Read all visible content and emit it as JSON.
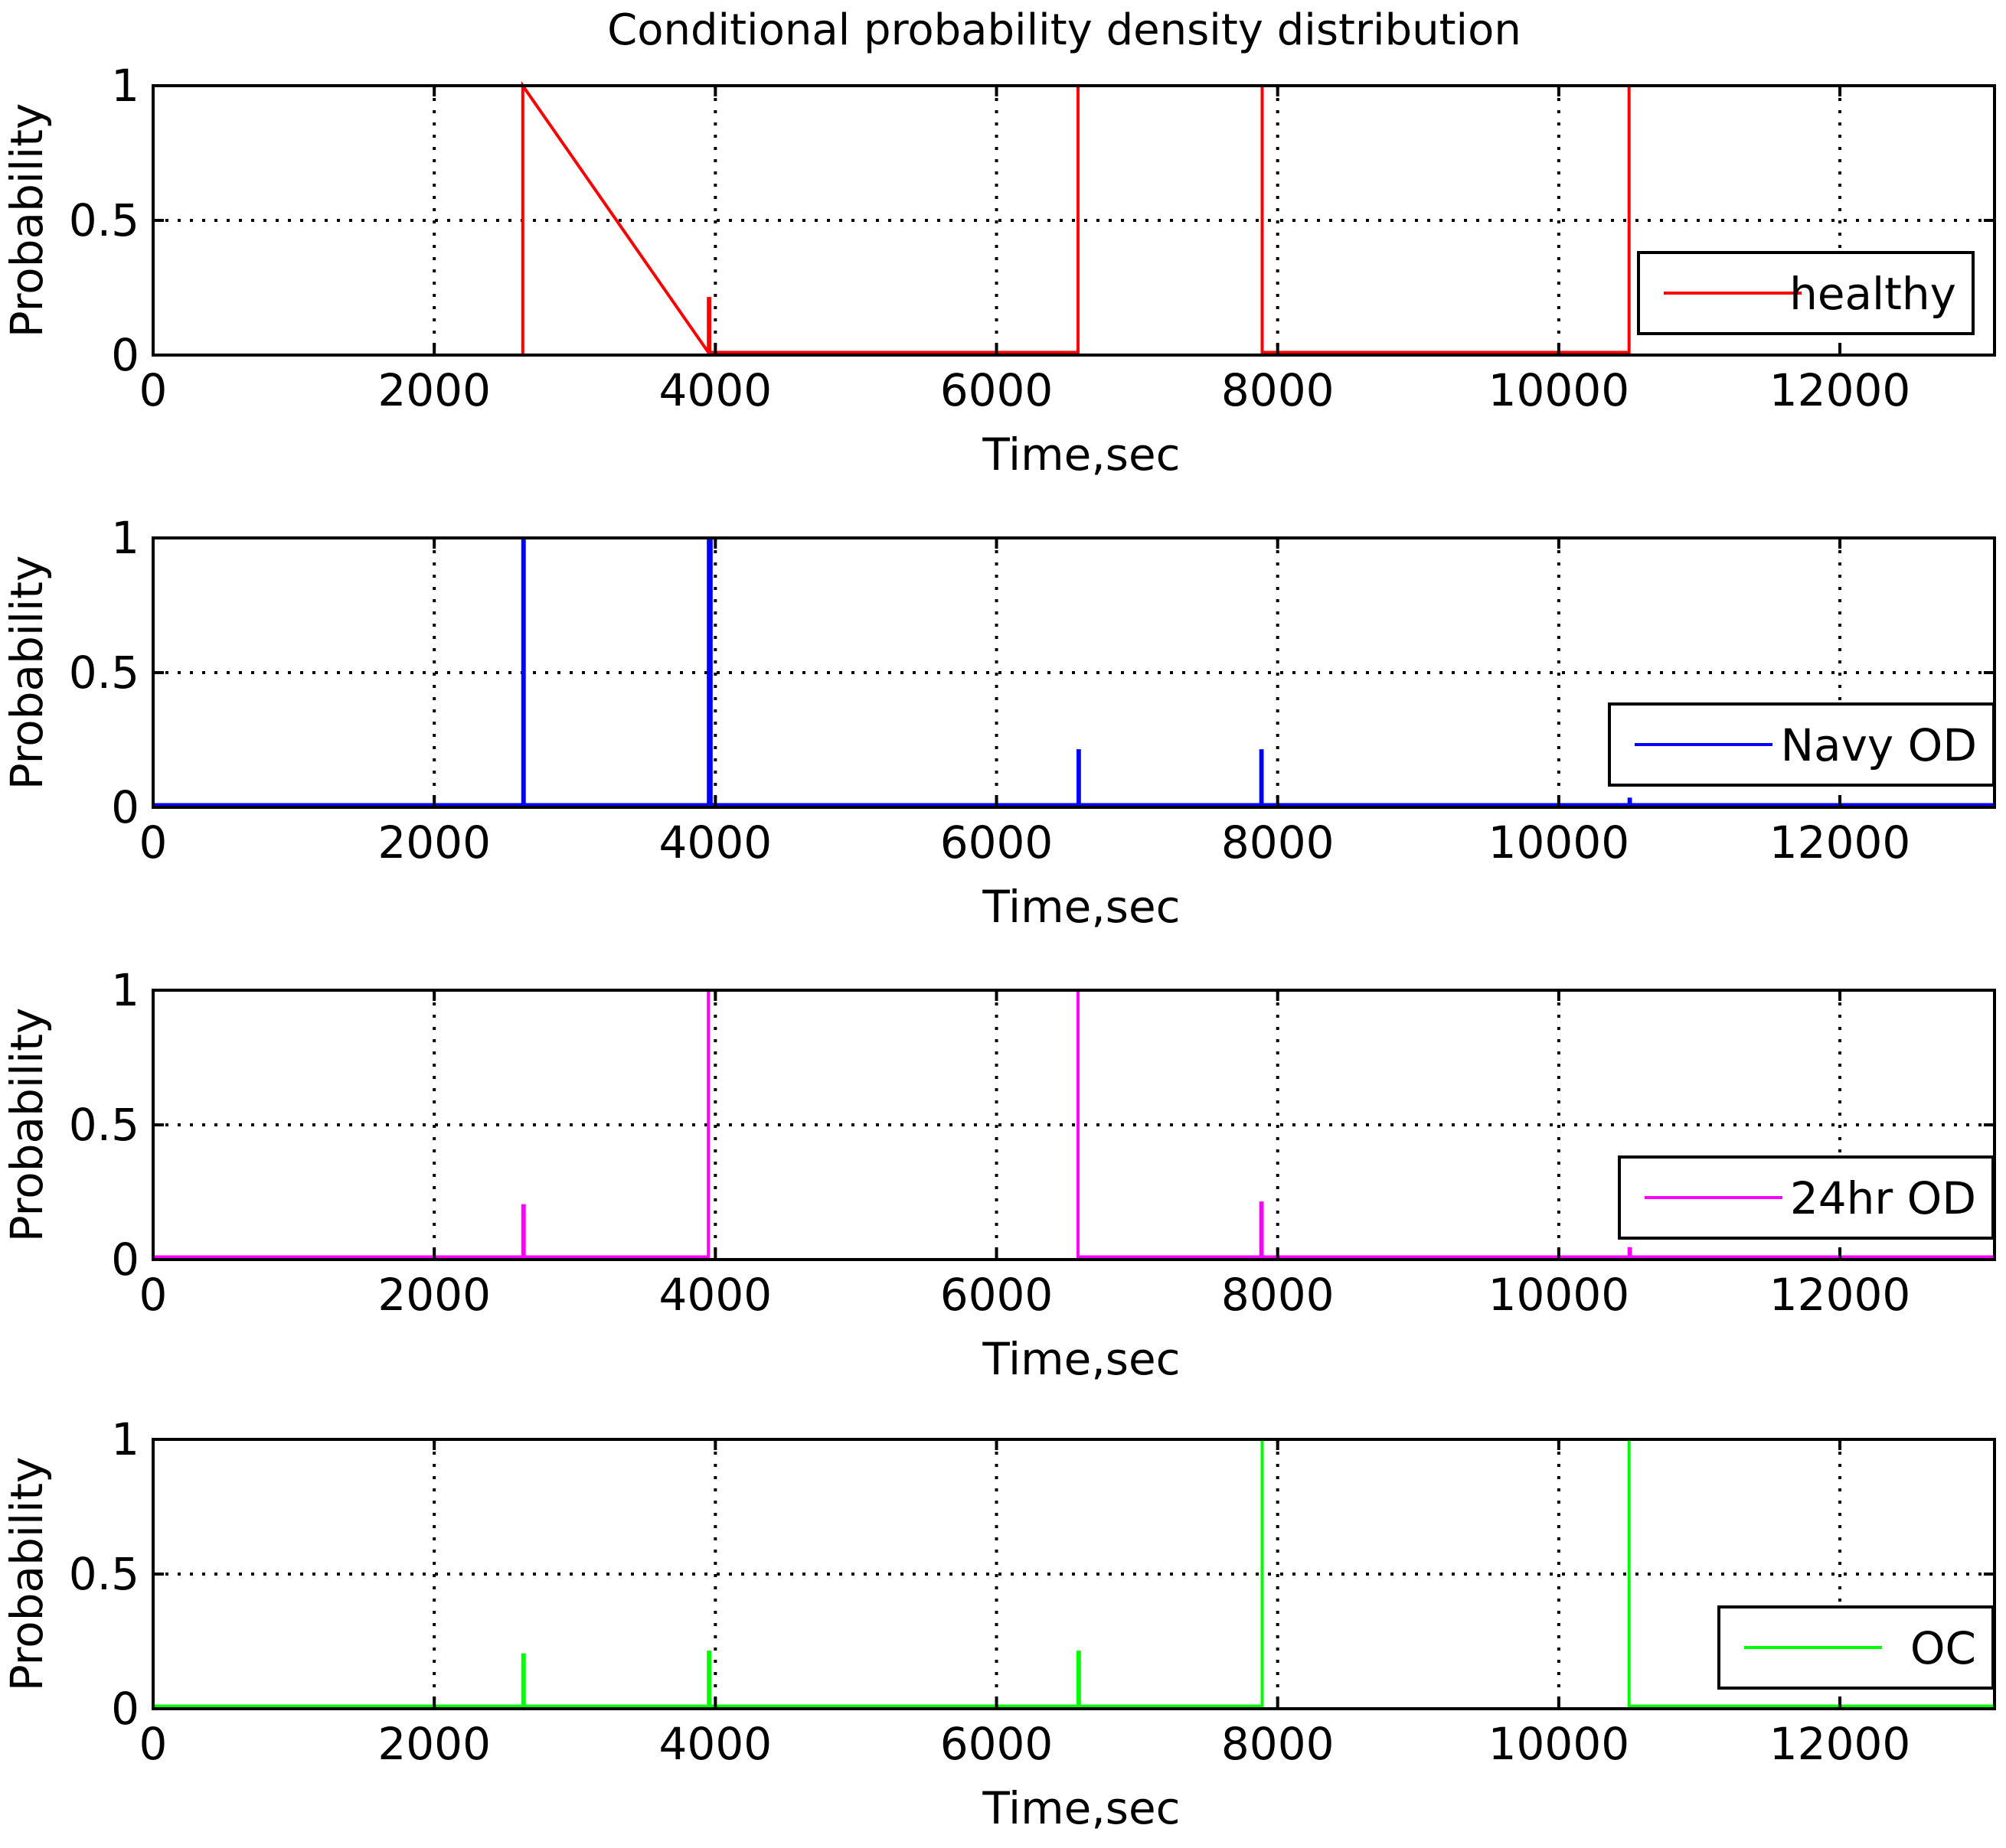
{
  "chart_data": {
    "type": "line",
    "title": "Conditional probability density distribution",
    "xlabel": "Time,sec",
    "ylabel": "Probability",
    "xlim": [
      0,
      13100
    ],
    "ylim": [
      0,
      1
    ],
    "xticks": [
      0,
      2000,
      4000,
      6000,
      8000,
      10000,
      12000
    ],
    "xtick_labels": [
      "0",
      "2000",
      "4000",
      "6000",
      "8000",
      "10000",
      "12000"
    ],
    "yticks": [
      0,
      0.5,
      1
    ],
    "ytick_labels": [
      "0",
      "0.5",
      "1"
    ],
    "grid": true,
    "legend_position": "right",
    "panels": [
      {
        "series": [
          {
            "name": "healthy",
            "color": "#ff0000",
            "x": [
              2630,
              2630,
              3950,
              3950,
              3960,
              3960,
              6580,
              6580,
              7890,
              7890,
              10500,
              10500
            ],
            "y": [
              0,
              1,
              0.01,
              0.21,
              0.21,
              0.01,
              0.01,
              1,
              1,
              0.01,
              0.01,
              1
            ]
          }
        ]
      },
      {
        "series": [
          {
            "name": "Navy OD",
            "color": "#0000ff",
            "x": [
              0,
              2630,
              2630,
              2640,
              2640,
              3950,
              3950,
              3970,
              3970,
              6580,
              6580,
              6590,
              6590,
              7880,
              7880,
              7890,
              7890,
              10500,
              10500,
              10510,
              10510,
              13100
            ],
            "y": [
              0.01,
              0.01,
              1,
              1,
              0.01,
              0.01,
              1,
              1,
              0.01,
              0.01,
              0.21,
              0.21,
              0.01,
              0.01,
              0.21,
              0.21,
              0.01,
              0.01,
              0.03,
              0.03,
              0.01,
              0.01
            ]
          }
        ]
      },
      {
        "series": [
          {
            "name": "24hr OD",
            "color": "#ff00ff",
            "x": [
              0,
              2630,
              2630,
              2640,
              2640,
              3950,
              3950,
              6580,
              6580,
              7880,
              7880,
              7890,
              7890,
              10500,
              10500,
              10510,
              10510,
              13100
            ],
            "y": [
              0.01,
              0.01,
              0.2,
              0.2,
              0.01,
              0.01,
              1,
              1,
              0.01,
              0.01,
              0.21,
              0.21,
              0.01,
              0.01,
              0.04,
              0.04,
              0.01,
              0.01
            ]
          }
        ]
      },
      {
        "series": [
          {
            "name": "OC",
            "color": "#00ff00",
            "x": [
              0,
              2630,
              2630,
              2640,
              2640,
              3950,
              3950,
              3960,
              3960,
              6580,
              6580,
              6590,
              6590,
              7890,
              7890,
              10500,
              10500,
              13100
            ],
            "y": [
              0.01,
              0.01,
              0.2,
              0.2,
              0.01,
              0.01,
              0.21,
              0.21,
              0.01,
              0.01,
              0.21,
              0.21,
              0.01,
              0.01,
              1,
              1,
              0.01,
              0.01
            ]
          }
        ]
      }
    ]
  }
}
